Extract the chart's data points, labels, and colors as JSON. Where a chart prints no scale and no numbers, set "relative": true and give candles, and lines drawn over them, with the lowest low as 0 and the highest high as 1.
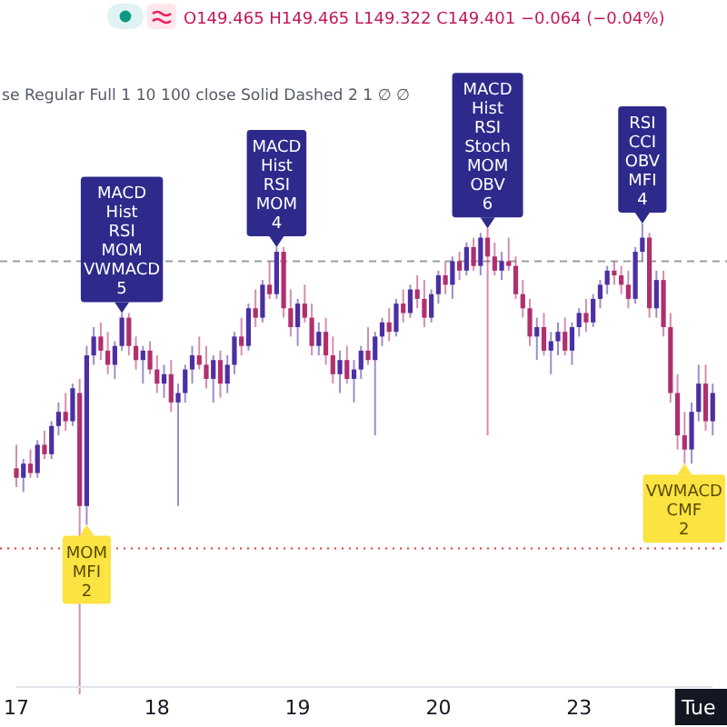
{
  "chart_data": {
    "type": "candlestick",
    "relative": true,
    "title": "O149.465 H149.465 L149.322 C149.401 −0.064 (−0.04%)",
    "subtitle": "se Regular Full 1 10 100 close Solid Dashed 2 1 ∅ ∅",
    "categories": [
      "17",
      null,
      null,
      null,
      null,
      null,
      null,
      null,
      null,
      null,
      null,
      null,
      null,
      null,
      null,
      null,
      null,
      null,
      null,
      null,
      "18",
      null,
      null,
      null,
      null,
      null,
      null,
      null,
      null,
      null,
      null,
      null,
      null,
      null,
      null,
      null,
      null,
      null,
      null,
      null,
      "19",
      null,
      null,
      null,
      null,
      null,
      null,
      null,
      null,
      null,
      null,
      null,
      null,
      null,
      null,
      null,
      null,
      null,
      null,
      null,
      "20",
      null,
      null,
      null,
      null,
      null,
      null,
      null,
      null,
      null,
      null,
      null,
      null,
      null,
      null,
      null,
      null,
      null,
      null,
      null,
      "23",
      null,
      null,
      null,
      null,
      null,
      null,
      null,
      null,
      null,
      null,
      null,
      null,
      null,
      null,
      null,
      null,
      "Tue",
      null,
      null
    ],
    "colors": [
      "#b02f6e",
      "#4b2fa3",
      "#b02f6e",
      "#4b2fa3",
      "#b02f6e",
      "#4b2fa3",
      "#4b2fa3",
      "#b02f6e",
      "#4b2fa3",
      "#b02f6e",
      "#4b2fa3",
      "#4b2fa3",
      "#b02f6e",
      "#b02f6e",
      "#4b2fa3",
      "#4b2fa3",
      "#b02f6e",
      "#b02f6e",
      "#4b2fa3",
      "#b02f6e",
      "#b02f6e",
      "#4b2fa3",
      "#b02f6e",
      "#4b2fa3",
      "#4b2fa3",
      "#4b2fa3",
      "#b02f6e",
      "#b02f6e",
      "#4b2fa3",
      "#b02f6e",
      "#4b2fa3",
      "#4b2fa3",
      "#b02f6e",
      "#4b2fa3",
      "#b02f6e",
      "#4b2fa3",
      "#b02f6e",
      "#4b2fa3",
      "#b02f6e",
      "#b02f6e",
      "#4b2fa3",
      "#b02f6e",
      "#b02f6e",
      "#4b2fa3",
      "#b02f6e",
      "#b02f6e",
      "#4b2fa3",
      "#b02f6e",
      "#4b2fa3",
      "#4b2fa3",
      "#b02f6e",
      "#4b2fa3",
      "#4b2fa3",
      "#b02f6e",
      "#4b2fa3",
      "#b02f6e",
      "#4b2fa3",
      "#b02f6e",
      "#b02f6e",
      "#4b2fa3",
      "#4b2fa3",
      "#b02f6e",
      "#4b2fa3",
      "#b02f6e",
      "#4b2fa3",
      "#b02f6e",
      "#4b2fa3",
      "#b02f6e",
      "#b02f6e",
      "#4b2fa3",
      "#b02f6e",
      "#b02f6e",
      "#b02f6e",
      "#b02f6e",
      "#4b2fa3",
      "#b02f6e",
      "#4b2fa3",
      "#4b2fa3",
      "#b02f6e",
      "#4b2fa3",
      "#4b2fa3",
      "#b02f6e",
      "#4b2fa3",
      "#4b2fa3",
      "#4b2fa3",
      "#b02f6e",
      "#b02f6e",
      "#b02f6e",
      "#4b2fa3",
      "#4b2fa3",
      "#b02f6e",
      "#4b2fa3",
      "#b02f6e",
      "#b02f6e",
      "#b02f6e",
      "#b02f6e",
      "#4b2fa3",
      "#4b2fa3",
      "#b02f6e",
      "#4b2fa3"
    ],
    "ohlc": [
      [
        0.48,
        0.53,
        0.44,
        0.46
      ],
      [
        0.46,
        0.5,
        0.43,
        0.49
      ],
      [
        0.49,
        0.52,
        0.46,
        0.47
      ],
      [
        0.47,
        0.54,
        0.46,
        0.53
      ],
      [
        0.53,
        0.56,
        0.5,
        0.51
      ],
      [
        0.51,
        0.58,
        0.5,
        0.57
      ],
      [
        0.57,
        0.62,
        0.55,
        0.6
      ],
      [
        0.6,
        0.64,
        0.56,
        0.58
      ],
      [
        0.58,
        0.66,
        0.57,
        0.65
      ],
      [
        0.64,
        0.67,
        0.0,
        0.4
      ],
      [
        0.4,
        0.74,
        0.36,
        0.72
      ],
      [
        0.72,
        0.78,
        0.7,
        0.76
      ],
      [
        0.76,
        0.79,
        0.71,
        0.73
      ],
      [
        0.73,
        0.77,
        0.68,
        0.7
      ],
      [
        0.7,
        0.75,
        0.67,
        0.74
      ],
      [
        0.74,
        0.81,
        0.73,
        0.8
      ],
      [
        0.8,
        0.81,
        0.72,
        0.74
      ],
      [
        0.74,
        0.76,
        0.69,
        0.71
      ],
      [
        0.71,
        0.74,
        0.66,
        0.73
      ],
      [
        0.73,
        0.75,
        0.68,
        0.69
      ],
      [
        0.69,
        0.72,
        0.64,
        0.66
      ],
      [
        0.66,
        0.7,
        0.63,
        0.68
      ],
      [
        0.68,
        0.71,
        0.6,
        0.62
      ],
      [
        0.62,
        0.66,
        0.4,
        0.64
      ],
      [
        0.64,
        0.7,
        0.62,
        0.69
      ],
      [
        0.69,
        0.74,
        0.66,
        0.72
      ],
      [
        0.72,
        0.76,
        0.69,
        0.7
      ],
      [
        0.7,
        0.74,
        0.65,
        0.67
      ],
      [
        0.67,
        0.72,
        0.62,
        0.71
      ],
      [
        0.71,
        0.73,
        0.63,
        0.66
      ],
      [
        0.66,
        0.72,
        0.64,
        0.7
      ],
      [
        0.7,
        0.77,
        0.68,
        0.76
      ],
      [
        0.76,
        0.8,
        0.72,
        0.74
      ],
      [
        0.74,
        0.83,
        0.73,
        0.82
      ],
      [
        0.82,
        0.86,
        0.78,
        0.8
      ],
      [
        0.8,
        0.88,
        0.79,
        0.87
      ],
      [
        0.87,
        0.92,
        0.84,
        0.85
      ],
      [
        0.85,
        0.95,
        0.84,
        0.94
      ],
      [
        0.94,
        0.95,
        0.8,
        0.82
      ],
      [
        0.82,
        0.86,
        0.76,
        0.78
      ],
      [
        0.78,
        0.84,
        0.74,
        0.83
      ],
      [
        0.83,
        0.87,
        0.79,
        0.8
      ],
      [
        0.8,
        0.83,
        0.72,
        0.74
      ],
      [
        0.74,
        0.79,
        0.72,
        0.77
      ],
      [
        0.77,
        0.8,
        0.7,
        0.72
      ],
      [
        0.72,
        0.76,
        0.66,
        0.68
      ],
      [
        0.68,
        0.73,
        0.64,
        0.71
      ],
      [
        0.71,
        0.74,
        0.66,
        0.67
      ],
      [
        0.67,
        0.71,
        0.62,
        0.69
      ],
      [
        0.69,
        0.74,
        0.67,
        0.73
      ],
      [
        0.73,
        0.78,
        0.7,
        0.71
      ],
      [
        0.71,
        0.77,
        0.55,
        0.76
      ],
      [
        0.76,
        0.8,
        0.74,
        0.79
      ],
      [
        0.79,
        0.82,
        0.75,
        0.77
      ],
      [
        0.77,
        0.84,
        0.76,
        0.83
      ],
      [
        0.83,
        0.86,
        0.79,
        0.81
      ],
      [
        0.81,
        0.87,
        0.8,
        0.86
      ],
      [
        0.86,
        0.89,
        0.82,
        0.84
      ],
      [
        0.84,
        0.88,
        0.78,
        0.8
      ],
      [
        0.8,
        0.86,
        0.79,
        0.85
      ],
      [
        0.85,
        0.9,
        0.83,
        0.89
      ],
      [
        0.89,
        0.92,
        0.85,
        0.87
      ],
      [
        0.87,
        0.93,
        0.84,
        0.92
      ],
      [
        0.92,
        0.94,
        0.88,
        0.9
      ],
      [
        0.9,
        0.96,
        0.89,
        0.95
      ],
      [
        0.95,
        0.97,
        0.9,
        0.91
      ],
      [
        0.91,
        0.98,
        0.89,
        0.97
      ],
      [
        0.97,
        0.99,
        0.55,
        0.93
      ],
      [
        0.93,
        0.96,
        0.89,
        0.9
      ],
      [
        0.9,
        0.94,
        0.88,
        0.92
      ],
      [
        0.92,
        0.97,
        0.9,
        0.91
      ],
      [
        0.91,
        0.93,
        0.84,
        0.85
      ],
      [
        0.85,
        0.88,
        0.8,
        0.82
      ],
      [
        0.82,
        0.84,
        0.74,
        0.76
      ],
      [
        0.76,
        0.8,
        0.71,
        0.78
      ],
      [
        0.78,
        0.81,
        0.72,
        0.73
      ],
      [
        0.73,
        0.77,
        0.68,
        0.75
      ],
      [
        0.75,
        0.79,
        0.72,
        0.77
      ],
      [
        0.77,
        0.8,
        0.72,
        0.73
      ],
      [
        0.73,
        0.79,
        0.7,
        0.78
      ],
      [
        0.78,
        0.82,
        0.76,
        0.81
      ],
      [
        0.81,
        0.84,
        0.77,
        0.79
      ],
      [
        0.79,
        0.85,
        0.78,
        0.84
      ],
      [
        0.84,
        0.88,
        0.82,
        0.87
      ],
      [
        0.87,
        0.91,
        0.85,
        0.9
      ],
      [
        0.9,
        0.92,
        0.87,
        0.89
      ],
      [
        0.89,
        0.91,
        0.85,
        0.87
      ],
      [
        0.87,
        0.9,
        0.82,
        0.84
      ],
      [
        0.84,
        0.95,
        0.83,
        0.94
      ],
      [
        0.94,
        1.0,
        0.92,
        0.97
      ],
      [
        0.97,
        0.98,
        0.8,
        0.82
      ],
      [
        0.82,
        0.9,
        0.8,
        0.88
      ],
      [
        0.88,
        0.9,
        0.76,
        0.78
      ],
      [
        0.78,
        0.81,
        0.62,
        0.64
      ],
      [
        0.64,
        0.68,
        0.52,
        0.55
      ],
      [
        0.55,
        0.6,
        0.49,
        0.52
      ],
      [
        0.52,
        0.62,
        0.49,
        0.6
      ],
      [
        0.6,
        0.7,
        0.58,
        0.66
      ],
      [
        0.66,
        0.7,
        0.56,
        0.58
      ],
      [
        0.58,
        0.66,
        0.55,
        0.64
      ]
    ],
    "ref_lines": [
      {
        "axis": "y",
        "value": 0.92,
        "color": "#9e9e9e",
        "line_style": "dashed"
      },
      {
        "axis": "y",
        "value": 0.31,
        "color": "#e53935",
        "line_style": "dotted"
      }
    ],
    "annotations": [
      {
        "text": "MACD\nHist\nRSI\nMOM\nVWMACD\n5",
        "y": 0.81
      },
      {
        "text": "MACD\nHist\nRSI\nMOM\n4",
        "y": 0.95
      },
      {
        "text": "MACD\nHist\nRSI\nStoch\nMOM\nOBV\n6",
        "y": 0.99
      },
      {
        "text": "RSI\nCCI\nOBV\nMFI\n4",
        "y": 1.0
      },
      {
        "text": "MOM\nMFI\n2",
        "y": 0.36
      },
      {
        "text": "VWMACD\nCMF\n2",
        "y": 0.49
      }
    ]
  }
}
